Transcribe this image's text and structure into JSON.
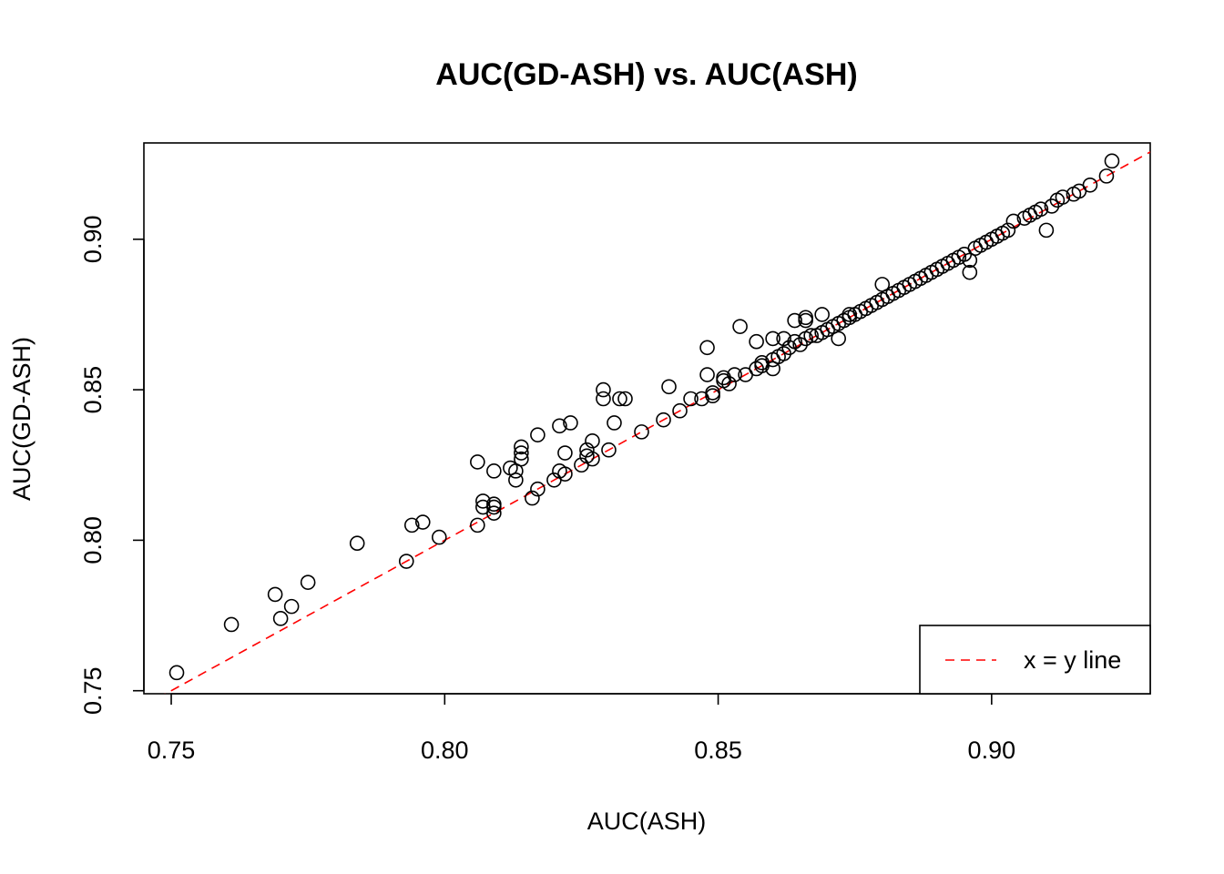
{
  "chart_data": {
    "type": "scatter",
    "title": "AUC(GD-ASH) vs. AUC(ASH)",
    "xlabel": "AUC(ASH)",
    "ylabel": "AUC(GD-ASH)",
    "xlim": [
      0.745,
      0.929
    ],
    "ylim": [
      0.749,
      0.932
    ],
    "x_ticks": [
      0.75,
      0.8,
      0.85,
      0.9
    ],
    "x_tick_labels": [
      "0.75",
      "0.80",
      "0.85",
      "0.90"
    ],
    "y_ticks": [
      0.75,
      0.8,
      0.85,
      0.9
    ],
    "y_tick_labels": [
      "0.75",
      "0.80",
      "0.85",
      "0.90"
    ],
    "grid": false,
    "legend": {
      "position": "bottom-right",
      "entries": [
        {
          "label": "x = y line",
          "color": "#ff0000",
          "style": "dashed"
        }
      ]
    },
    "reference_line": {
      "slope": 1,
      "intercept": 0,
      "color": "#ff0000",
      "style": "dashed"
    },
    "series": [
      {
        "marker": "open-circle",
        "color": "#000000",
        "x": [
          0.751,
          0.761,
          0.769,
          0.77,
          0.772,
          0.775,
          0.784,
          0.793,
          0.794,
          0.796,
          0.799,
          0.806,
          0.806,
          0.807,
          0.807,
          0.809,
          0.809,
          0.809,
          0.809,
          0.812,
          0.813,
          0.813,
          0.814,
          0.814,
          0.814,
          0.816,
          0.817,
          0.817,
          0.82,
          0.821,
          0.821,
          0.822,
          0.822,
          0.823,
          0.825,
          0.826,
          0.826,
          0.827,
          0.827,
          0.829,
          0.829,
          0.83,
          0.831,
          0.832,
          0.833,
          0.836,
          0.84,
          0.841,
          0.843,
          0.845,
          0.847,
          0.848,
          0.848,
          0.849,
          0.849,
          0.851,
          0.851,
          0.852,
          0.853,
          0.854,
          0.855,
          0.857,
          0.857,
          0.858,
          0.858,
          0.86,
          0.86,
          0.86,
          0.861,
          0.862,
          0.862,
          0.863,
          0.864,
          0.864,
          0.865,
          0.866,
          0.866,
          0.866,
          0.867,
          0.868,
          0.869,
          0.869,
          0.87,
          0.871,
          0.872,
          0.872,
          0.873,
          0.874,
          0.874,
          0.875,
          0.876,
          0.877,
          0.878,
          0.879,
          0.88,
          0.88,
          0.881,
          0.882,
          0.883,
          0.884,
          0.885,
          0.886,
          0.887,
          0.888,
          0.889,
          0.89,
          0.891,
          0.892,
          0.893,
          0.894,
          0.895,
          0.896,
          0.896,
          0.897,
          0.898,
          0.899,
          0.9,
          0.901,
          0.902,
          0.903,
          0.904,
          0.906,
          0.907,
          0.908,
          0.909,
          0.91,
          0.911,
          0.912,
          0.913,
          0.915,
          0.916,
          0.918,
          0.921,
          0.922
        ],
        "y": [
          0.756,
          0.772,
          0.782,
          0.774,
          0.778,
          0.786,
          0.799,
          0.793,
          0.805,
          0.806,
          0.801,
          0.826,
          0.805,
          0.813,
          0.811,
          0.812,
          0.811,
          0.809,
          0.823,
          0.824,
          0.82,
          0.823,
          0.827,
          0.829,
          0.831,
          0.814,
          0.835,
          0.817,
          0.82,
          0.823,
          0.838,
          0.829,
          0.822,
          0.839,
          0.825,
          0.828,
          0.83,
          0.833,
          0.827,
          0.85,
          0.847,
          0.83,
          0.839,
          0.847,
          0.847,
          0.836,
          0.84,
          0.851,
          0.843,
          0.847,
          0.847,
          0.864,
          0.855,
          0.848,
          0.849,
          0.853,
          0.854,
          0.852,
          0.855,
          0.871,
          0.855,
          0.866,
          0.857,
          0.859,
          0.858,
          0.867,
          0.86,
          0.857,
          0.861,
          0.867,
          0.862,
          0.864,
          0.873,
          0.866,
          0.865,
          0.867,
          0.873,
          0.874,
          0.868,
          0.868,
          0.875,
          0.869,
          0.87,
          0.871,
          0.867,
          0.872,
          0.873,
          0.874,
          0.875,
          0.875,
          0.876,
          0.877,
          0.878,
          0.879,
          0.88,
          0.885,
          0.881,
          0.882,
          0.883,
          0.884,
          0.885,
          0.886,
          0.887,
          0.888,
          0.889,
          0.89,
          0.891,
          0.892,
          0.893,
          0.894,
          0.895,
          0.889,
          0.893,
          0.897,
          0.898,
          0.899,
          0.9,
          0.901,
          0.902,
          0.903,
          0.906,
          0.907,
          0.908,
          0.909,
          0.91,
          0.903,
          0.911,
          0.913,
          0.914,
          0.915,
          0.916,
          0.918,
          0.921,
          0.926
        ]
      }
    ]
  }
}
